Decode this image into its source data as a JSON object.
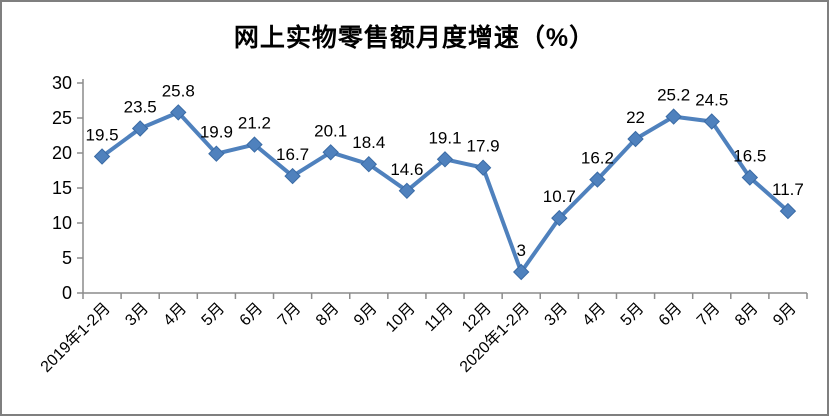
{
  "chart_data": {
    "type": "line",
    "title": "网上实物零售额月度增速（%）",
    "categories": [
      "2019年1-2月",
      "3月",
      "4月",
      "5月",
      "6月",
      "7月",
      "8月",
      "9月",
      "10月",
      "11月",
      "12月",
      "2020年1-2月",
      "3月",
      "4月",
      "5月",
      "6月",
      "7月",
      "8月",
      "9月"
    ],
    "series": [
      {
        "name": "网上实物零售额月度增速",
        "values": [
          19.5,
          23.5,
          25.8,
          19.9,
          21.2,
          16.7,
          20.1,
          18.4,
          14.6,
          19.1,
          17.9,
          3,
          10.7,
          16.2,
          22,
          25.2,
          24.5,
          16.5,
          11.7
        ]
      }
    ],
    "data_labels_shown": true,
    "xlabel": "",
    "ylabel": "",
    "ylim": [
      0,
      30
    ],
    "ytick_step": 5,
    "ytick_labels": [
      "0",
      "5",
      "10",
      "15",
      "20",
      "25",
      "30"
    ],
    "grid": false,
    "legend": "none",
    "marker": "diamond",
    "colors": {
      "series_line": "#4F81BD",
      "marker_fill": "#4F81BD",
      "marker_edge": "#3A6BA5",
      "axis": "#8c8c8c",
      "text": "#000000",
      "background": "#ffffff",
      "frame_border": "#7f7f7f"
    }
  }
}
